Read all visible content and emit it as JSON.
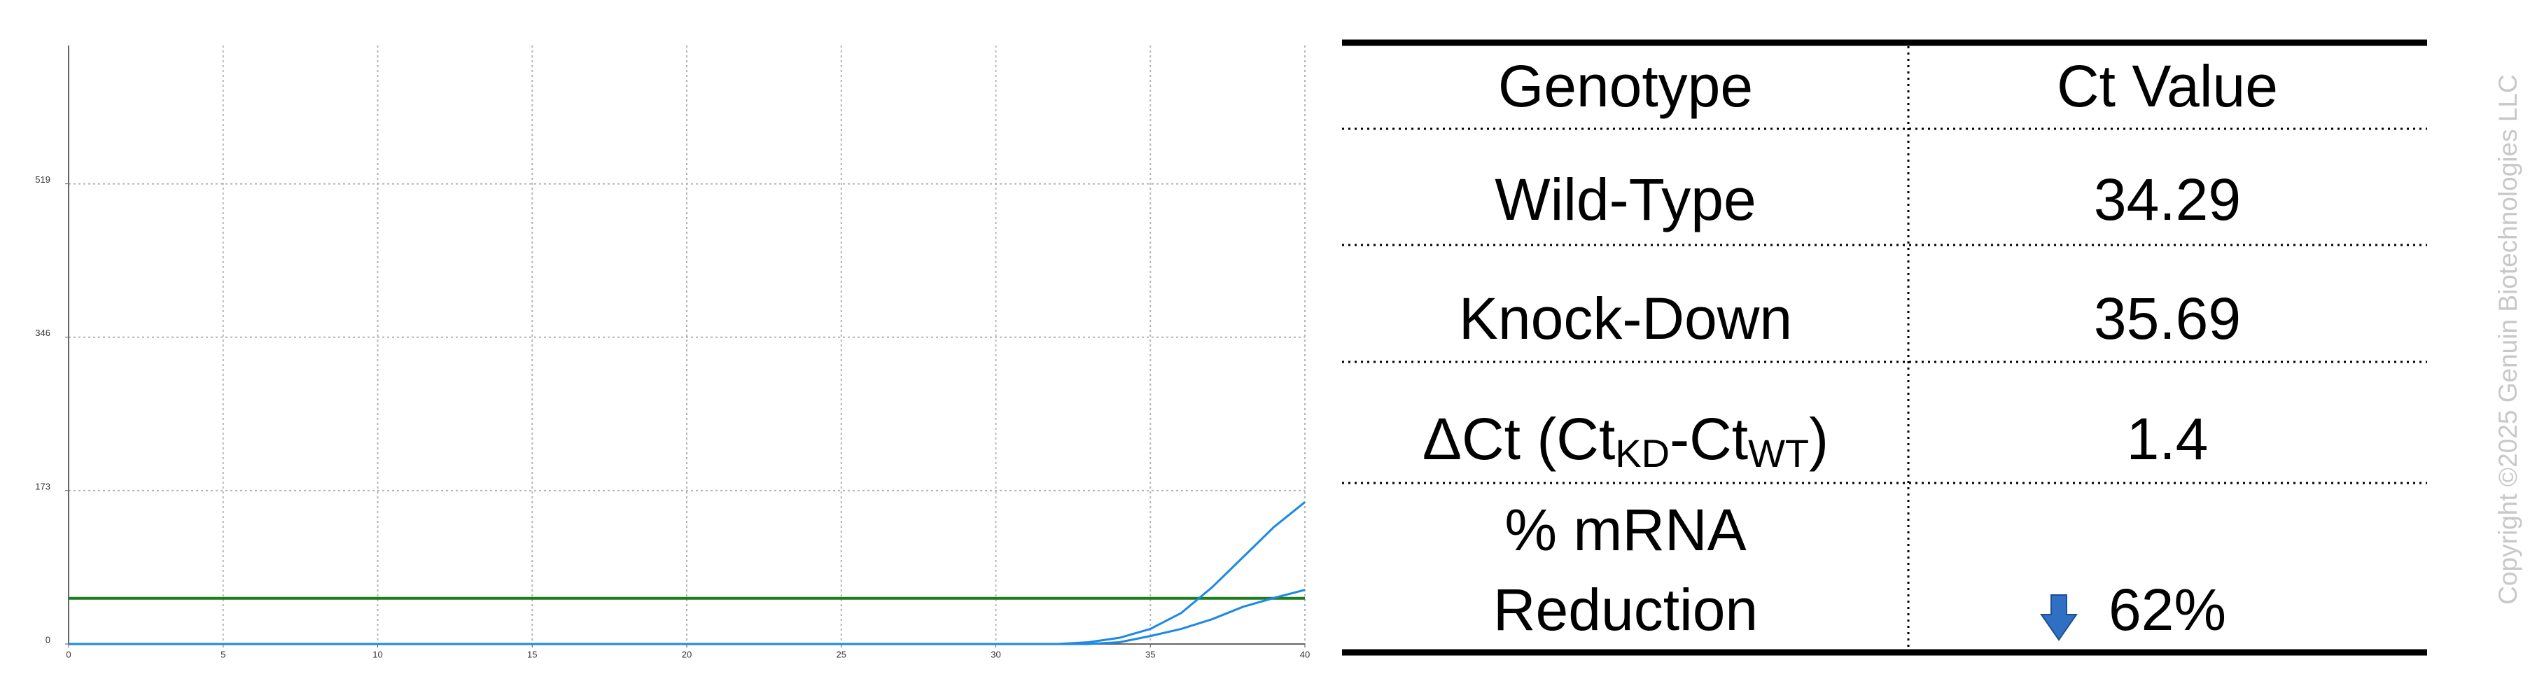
{
  "chart_data": {
    "type": "line",
    "x": [
      0,
      30,
      32,
      33,
      34,
      35,
      36,
      37,
      38,
      39,
      40
    ],
    "series": [
      {
        "color": "#1e88e5",
        "values": [
          0,
          0,
          0,
          2,
          7,
          17,
          35,
          64,
          98,
          132,
          160
        ]
      },
      {
        "color": "#1e88e5",
        "values": [
          0,
          0,
          0,
          0,
          2,
          9,
          17,
          28,
          42,
          52,
          61
        ]
      }
    ],
    "threshold": {
      "value": 51.5,
      "color": "#1e7d1e"
    },
    "xlim": [
      0,
      40
    ],
    "xticks": [
      0,
      5,
      10,
      15,
      20,
      25,
      30,
      35,
      40
    ],
    "ylim": [
      0,
      675
    ],
    "yticks": [
      0,
      173,
      346,
      519
    ],
    "grid": true
  },
  "table": {
    "header": [
      "Genotype",
      "Ct Value"
    ],
    "rows": [
      [
        "Wild-Type",
        "34.29"
      ],
      [
        "Knock-Down",
        "35.69"
      ],
      [
        [
          "ΔCt (Ct",
          "KD",
          "-Ct",
          "WT",
          ")"
        ],
        "1.4"
      ],
      [
        [
          "% mRNA",
          "Reduction"
        ],
        "62%"
      ]
    ]
  },
  "copyright": "Copyright ©2025 Genuin Biotechnologies LLC"
}
